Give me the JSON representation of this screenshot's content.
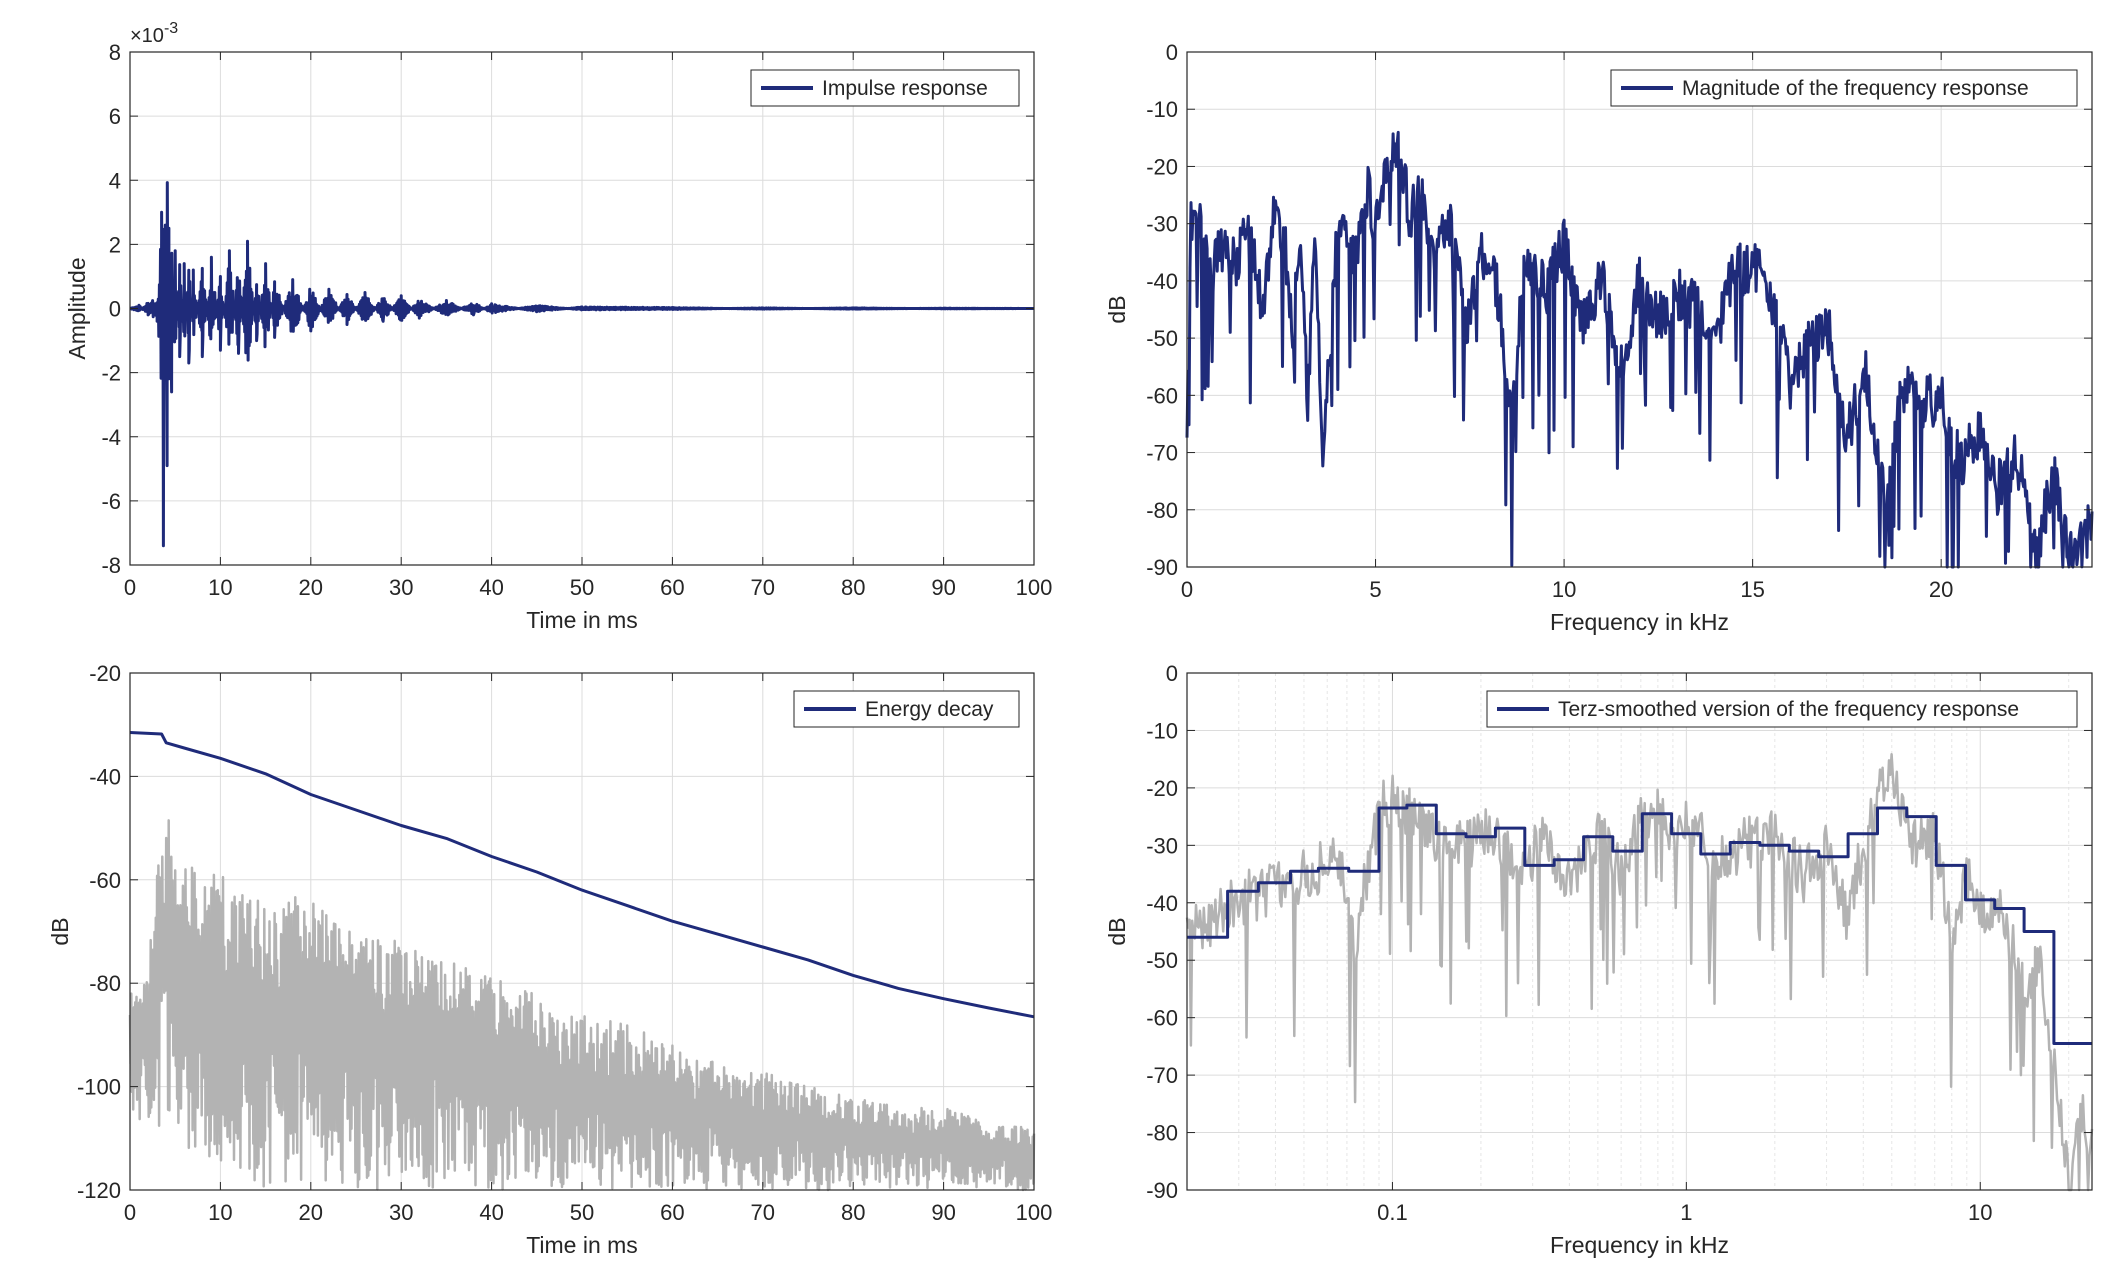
{
  "chart_data": [
    {
      "id": "impulse",
      "type": "line",
      "xlabel": "Time in ms",
      "ylabel": "Amplitude",
      "exponent_label": "×10",
      "exponent_power": "-3",
      "xlim": [
        0,
        100
      ],
      "ylim": [
        -8,
        8
      ],
      "xticks": [
        0,
        10,
        20,
        30,
        40,
        50,
        60,
        70,
        80,
        90,
        100
      ],
      "yticks": [
        -8,
        -6,
        -4,
        -2,
        0,
        2,
        4,
        6,
        8
      ],
      "grid": true,
      "legend_position": "top-right",
      "series": [
        {
          "name": "Impulse response",
          "color": "#1f2b7a",
          "x": [
            0,
            1,
            2,
            3,
            3.5,
            3.7,
            3.9,
            4.1,
            4.3,
            4.6,
            5,
            5.5,
            6,
            6.5,
            7,
            8,
            9,
            10,
            11,
            12,
            13,
            14,
            15,
            16,
            18,
            20,
            22,
            24,
            26,
            28,
            30,
            32,
            35,
            38,
            40,
            45,
            50,
            60,
            70,
            80,
            90,
            100
          ],
          "y": [
            0,
            0.1,
            -0.2,
            -0.4,
            3.0,
            -7.4,
            2.6,
            -4.9,
            2.5,
            -2.6,
            1.8,
            -1.5,
            1.4,
            -1.7,
            1.2,
            -1.5,
            1.6,
            -1.3,
            1.8,
            -1.4,
            2.1,
            -1.0,
            1.4,
            -0.9,
            0.9,
            -0.7,
            0.6,
            -0.5,
            0.5,
            -0.4,
            0.4,
            -0.3,
            0.25,
            -0.2,
            0.15,
            -0.1,
            0.05,
            0.03,
            -0.02,
            0.02,
            -0.01,
            0.0
          ]
        }
      ]
    },
    {
      "id": "magnitude",
      "type": "line",
      "xlabel": "Frequency in kHz",
      "ylabel": "dB",
      "xlim": [
        0,
        24
      ],
      "ylim": [
        -90,
        0
      ],
      "xticks": [
        0,
        5,
        10,
        15,
        20
      ],
      "yticks": [
        0,
        -10,
        -20,
        -30,
        -40,
        -50,
        -60,
        -70,
        -80,
        -90
      ],
      "grid": true,
      "legend_position": "top-right",
      "series": [
        {
          "name": "Magnitude of the frequency response",
          "color": "#1f2b7a",
          "x": [
            0,
            0.1,
            0.3,
            0.6,
            1.0,
            1.3,
            1.6,
            2.0,
            2.3,
            2.6,
            2.8,
            3.0,
            3.2,
            3.4,
            3.6,
            4.0,
            4.4,
            4.8,
            5.0,
            5.3,
            5.6,
            5.9,
            6.2,
            6.6,
            7.0,
            7.4,
            7.8,
            8.2,
            8.6,
            9.0,
            9.5,
            10.0,
            10.5,
            11.0,
            11.5,
            12.0,
            12.5,
            13.0,
            13.5,
            14.0,
            14.5,
            15.0,
            15.5,
            16.0,
            16.5,
            17.0,
            17.5,
            18.0,
            18.5,
            19.0,
            19.5,
            20.0,
            20.5,
            21.0,
            21.5,
            22.0,
            22.5,
            23.0,
            23.5,
            24.0
          ],
          "y": [
            -69,
            -30,
            -28,
            -40,
            -32,
            -38,
            -30,
            -45,
            -28,
            -33,
            -50,
            -28,
            -60,
            -32,
            -72,
            -30,
            -36,
            -24,
            -30,
            -18,
            -16,
            -28,
            -24,
            -35,
            -30,
            -48,
            -34,
            -40,
            -62,
            -34,
            -42,
            -33,
            -47,
            -39,
            -54,
            -40,
            -46,
            -42,
            -44,
            -50,
            -38,
            -37,
            -42,
            -58,
            -50,
            -48,
            -67,
            -55,
            -78,
            -58,
            -61,
            -60,
            -72,
            -66,
            -76,
            -70,
            -87,
            -74,
            -90,
            -81
          ]
        }
      ]
    },
    {
      "id": "energy",
      "type": "line",
      "xlabel": "Time in ms",
      "ylabel": "dB",
      "xlim": [
        0,
        100
      ],
      "ylim": [
        -120,
        -20
      ],
      "xticks": [
        0,
        10,
        20,
        30,
        40,
        50,
        60,
        70,
        80,
        90,
        100
      ],
      "yticks": [
        -20,
        -40,
        -60,
        -80,
        -100,
        -120
      ],
      "grid": true,
      "legend_position": "top-right",
      "series": [
        {
          "name": "Energy decay",
          "color": "#1f2b7a",
          "x": [
            0,
            3.5,
            4,
            6,
            10,
            15,
            20,
            25,
            30,
            35,
            40,
            45,
            50,
            55,
            60,
            65,
            70,
            75,
            80,
            85,
            90,
            95,
            100
          ],
          "y": [
            -31.5,
            -31.8,
            -33.5,
            -34.5,
            -36.5,
            -39.5,
            -43.5,
            -46.5,
            -49.5,
            -52,
            -55.5,
            -58.5,
            -62,
            -65,
            -68,
            -70.5,
            -73,
            -75.5,
            -78.5,
            -81,
            -83,
            -84.8,
            -86.5
          ]
        },
        {
          "name": "",
          "color": "#b3b3b3",
          "x": [
            0,
            2,
            4,
            5,
            8,
            12,
            16,
            20,
            25,
            30,
            35,
            40,
            45,
            50,
            55,
            60,
            65,
            70,
            75,
            80,
            85,
            90,
            95,
            100
          ],
          "y_high": [
            -80,
            -75,
            -43,
            -55,
            -58,
            -60,
            -62,
            -64,
            -70,
            -72,
            -75,
            -78,
            -82,
            -85,
            -88,
            -92,
            -95,
            -97,
            -100,
            -102,
            -104,
            -104,
            -107,
            -108
          ],
          "y_low": [
            -105,
            -110,
            -110,
            -112,
            -115,
            -118,
            -120,
            -120,
            -120,
            -120,
            -120,
            -120,
            -120,
            -120,
            -120,
            -120,
            -120,
            -120,
            -120,
            -120,
            -120,
            -120,
            -120,
            -120
          ]
        }
      ]
    },
    {
      "id": "terz",
      "type": "line",
      "xscale": "log",
      "xlabel": "Frequency in kHz",
      "ylabel": "dB",
      "xlim": [
        0.02,
        24
      ],
      "ylim": [
        -90,
        0
      ],
      "xticks": [
        0.1,
        1,
        10
      ],
      "xticklabels": [
        "0.1",
        "1",
        "10"
      ],
      "yticks": [
        0,
        -10,
        -20,
        -30,
        -40,
        -50,
        -60,
        -70,
        -80,
        -90
      ],
      "grid": true,
      "legend_position": "top-right",
      "series": [
        {
          "name": "Terz-smoothed version of the frequency response",
          "color": "#1f2b7a",
          "x": [
            0.02,
            0.0275,
            0.035,
            0.045,
            0.056,
            0.071,
            0.09,
            0.112,
            0.141,
            0.178,
            0.224,
            0.282,
            0.355,
            0.447,
            0.562,
            0.708,
            0.891,
            1.12,
            1.41,
            1.78,
            2.24,
            2.82,
            3.55,
            4.47,
            5.62,
            7.08,
            8.91,
            11.2,
            14.1,
            17.8,
            24
          ],
          "y": [
            -46,
            -38,
            -36.5,
            -34.5,
            -34,
            -34.5,
            -23.5,
            -23,
            -28,
            -28.5,
            -27,
            -33.5,
            -32.5,
            -28.5,
            -31,
            -24.5,
            -28,
            -31.5,
            -29.5,
            -30,
            -31,
            -32,
            -28,
            -23.5,
            -25,
            -33.5,
            -39.5,
            -41,
            -45,
            -64.5,
            -64.5
          ],
          "step": true
        },
        {
          "name": "",
          "color": "#b3b3b3",
          "x": [
            0.02,
            0.025,
            0.03,
            0.04,
            0.05,
            0.06,
            0.068,
            0.074,
            0.08,
            0.09,
            0.1,
            0.12,
            0.15,
            0.18,
            0.22,
            0.27,
            0.32,
            0.4,
            0.5,
            0.6,
            0.7,
            0.8,
            0.9,
            1.0,
            1.3,
            1.6,
            2.0,
            2.5,
            3.0,
            3.5,
            4.0,
            4.5,
            5.0,
            5.5,
            6.0,
            7.0,
            8.0,
            9.0,
            10.0,
            12.0,
            14.0,
            16.0,
            18.0,
            20.0,
            22.0,
            24.0
          ],
          "y": [
            -45,
            -42,
            -39,
            -37,
            -35,
            -33,
            -33,
            -48,
            -37,
            -24,
            -21,
            -25,
            -29,
            -30,
            -27,
            -35,
            -29,
            -35,
            -28,
            -34,
            -26,
            -22,
            -30,
            -24,
            -33,
            -29,
            -28,
            -35,
            -29,
            -42,
            -30,
            -21,
            -18,
            -25,
            -30,
            -28,
            -45,
            -36,
            -40,
            -42,
            -55,
            -50,
            -70,
            -88,
            -75,
            -82
          ]
        }
      ]
    }
  ]
}
